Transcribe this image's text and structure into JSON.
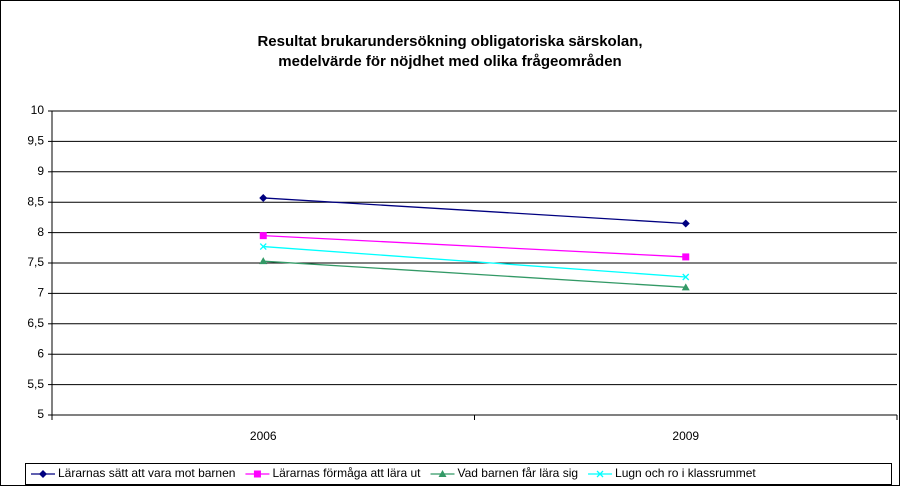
{
  "chart_data": {
    "type": "line",
    "title": [
      "Resultat brukarundersökning obligatoriska särskolan,",
      "medelvärde för nöjdhet med olika frågeområden"
    ],
    "categories": [
      "2006",
      "2009"
    ],
    "series": [
      {
        "name": "Lärarnas sätt att vara mot barnen",
        "color": "#000080",
        "marker": "diamond",
        "values": [
          8.57,
          8.15
        ]
      },
      {
        "name": "Lärarnas förmåga att lära ut",
        "color": "#ff00ff",
        "marker": "square",
        "values": [
          7.95,
          7.6
        ]
      },
      {
        "name": "Vad barnen får lära sig",
        "color": "#339966",
        "marker": "triangle",
        "values": [
          7.53,
          7.1
        ]
      },
      {
        "name": "Lugn och ro i klassrummet",
        "color": "#00ffff",
        "marker": "x",
        "values": [
          7.77,
          7.27
        ]
      }
    ],
    "ylim": [
      5,
      10
    ],
    "yticks": [
      5,
      {
        "value": 5.5,
        "label": "5,5"
      },
      6,
      {
        "value": 6.5,
        "label": "6,5"
      },
      7,
      {
        "value": 7.5,
        "label": "7,5"
      },
      8,
      {
        "value": 8.5,
        "label": "8,5"
      },
      9,
      {
        "value": 9.5,
        "label": "9,5"
      },
      10
    ],
    "grid": true,
    "legend": "bottom"
  }
}
